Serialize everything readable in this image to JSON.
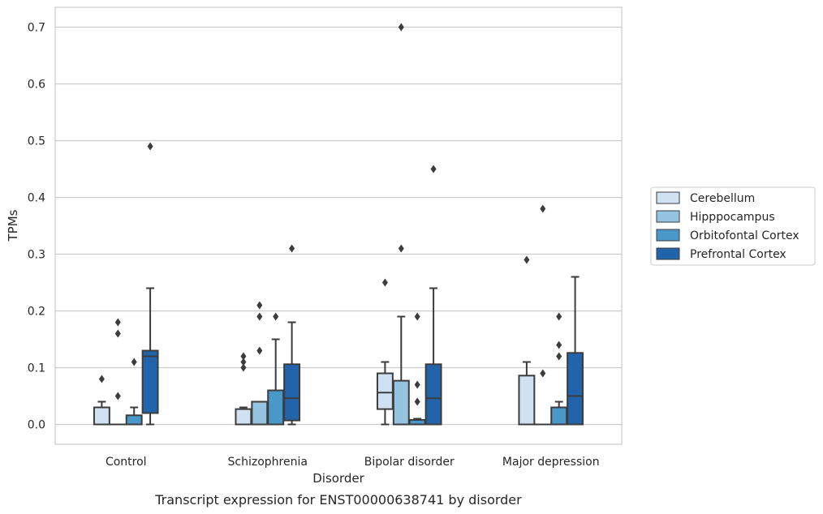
{
  "chart_data": {
    "type": "box",
    "title": "",
    "caption": "Transcript expression for ENST00000638741 by disorder",
    "xlabel": "Disorder",
    "ylabel": "TPMs",
    "ylim": [
      -0.035,
      0.735
    ],
    "yticks": [
      "0.0",
      "0.1",
      "0.2",
      "0.3",
      "0.4",
      "0.5",
      "0.6",
      "0.7"
    ],
    "ytick_values": [
      0,
      0.1,
      0.2,
      0.3,
      0.4,
      0.5,
      0.6,
      0.7
    ],
    "grid": "horizontal",
    "legend_placement": "right",
    "categories": [
      "Control",
      "Schizophrenia",
      "Bipolar disorder",
      "Major depression"
    ],
    "series": [
      {
        "name": "Cerebellum",
        "color": "#d0e1f2",
        "boxes": [
          {
            "q1": 0,
            "median": 0,
            "q3": 0.03,
            "whisker_low": 0,
            "whisker_high": 0.04,
            "outliers": [
              0.08
            ]
          },
          {
            "q1": 0,
            "median": 0,
            "q3": 0.027,
            "whisker_low": 0,
            "whisker_high": 0.03,
            "outliers": [
              0.1,
              0.11,
              0.12
            ]
          },
          {
            "q1": 0.027,
            "median": 0.056,
            "q3": 0.09,
            "whisker_low": 0,
            "whisker_high": 0.11,
            "outliers": [
              0.25
            ]
          },
          {
            "q1": 0,
            "median": 0,
            "q3": 0.086,
            "whisker_low": 0,
            "whisker_high": 0.11,
            "outliers": [
              0.29
            ]
          }
        ]
      },
      {
        "name": "Hipppocampus",
        "color": "#94c4df",
        "boxes": [
          {
            "q1": 0,
            "median": 0,
            "q3": 0,
            "whisker_low": 0,
            "whisker_high": 0,
            "outliers": [
              0.05,
              0.16,
              0.18
            ]
          },
          {
            "q1": 0,
            "median": 0,
            "q3": 0.04,
            "whisker_low": 0,
            "whisker_high": 0.04,
            "outliers": [
              0.13,
              0.19,
              0.21
            ]
          },
          {
            "q1": 0,
            "median": 0,
            "q3": 0.077,
            "whisker_low": 0,
            "whisker_high": 0.19,
            "outliers": [
              0.31,
              0.7
            ]
          },
          {
            "q1": 0,
            "median": 0,
            "q3": 0,
            "whisker_low": 0,
            "whisker_high": 0,
            "outliers": [
              0.09,
              0.38
            ]
          }
        ]
      },
      {
        "name": "Orbitofontal Cortex",
        "color": "#4a98c9",
        "boxes": [
          {
            "q1": 0,
            "median": 0,
            "q3": 0.016,
            "whisker_low": 0,
            "whisker_high": 0.03,
            "outliers": [
              0.11
            ]
          },
          {
            "q1": 0,
            "median": 0,
            "q3": 0.06,
            "whisker_low": 0,
            "whisker_high": 0.15,
            "outliers": [
              0.19
            ]
          },
          {
            "q1": 0,
            "median": 0,
            "q3": 0.008,
            "whisker_low": 0,
            "whisker_high": 0.01,
            "outliers": [
              0.04,
              0.07,
              0.19
            ]
          },
          {
            "q1": 0,
            "median": 0,
            "q3": 0.03,
            "whisker_low": 0,
            "whisker_high": 0.04,
            "outliers": [
              0.12,
              0.14,
              0.19
            ]
          }
        ]
      },
      {
        "name": "Prefrontal Cortex",
        "color": "#2164ab",
        "boxes": [
          {
            "q1": 0.02,
            "median": 0.12,
            "q3": 0.13,
            "whisker_low": 0,
            "whisker_high": 0.24,
            "outliers": [
              0.49
            ]
          },
          {
            "q1": 0.007,
            "median": 0.046,
            "q3": 0.106,
            "whisker_low": 0,
            "whisker_high": 0.18,
            "outliers": [
              0.31
            ]
          },
          {
            "q1": 0,
            "median": 0.046,
            "q3": 0.106,
            "whisker_low": 0,
            "whisker_high": 0.24,
            "outliers": [
              0.45
            ]
          },
          {
            "q1": 0,
            "median": 0.05,
            "q3": 0.126,
            "whisker_low": 0,
            "whisker_high": 0.26,
            "outliers": []
          }
        ]
      }
    ]
  }
}
